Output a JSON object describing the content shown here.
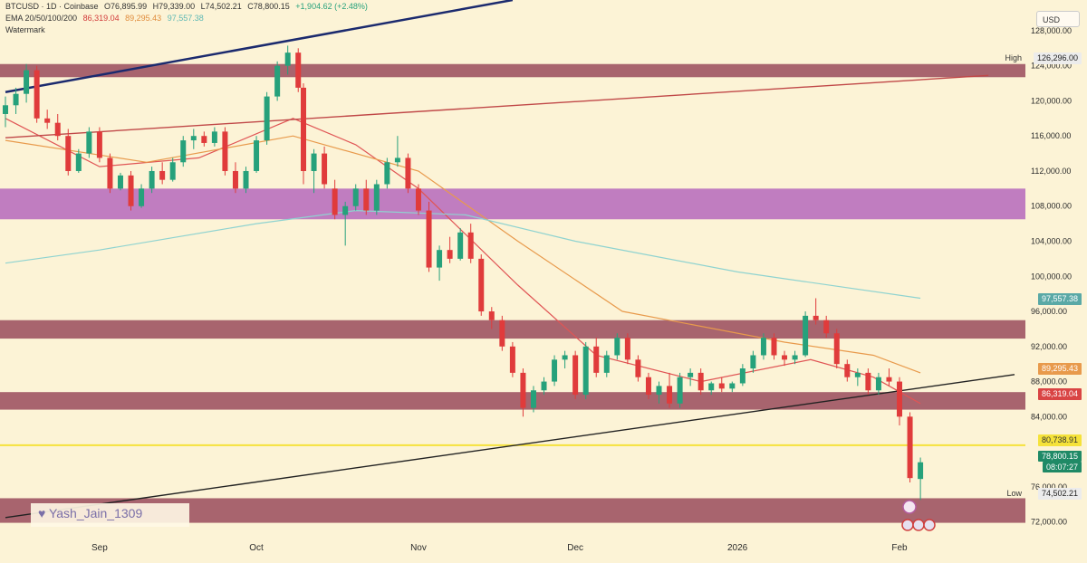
{
  "header": {
    "symbol": "BTCUSD · 1D · Coinbase",
    "open": "O76,895.99",
    "high": "H79,339.00",
    "low": "L74,502.21",
    "close": "C78,800.15",
    "change": "+1,904.62 (+2.48%)",
    "ema_label": "EMA 20/50/100/200",
    "ema20": "86,319.04",
    "ema50": "89,295.43",
    "ema100": "97,557.38",
    "watermark_label": "Watermark"
  },
  "currency": "USD",
  "watermark": "Yash_Jain_1309",
  "price_tags": {
    "high_label": "High",
    "high_value": "126,296.00",
    "low_label": "Low",
    "low_value": "74,502.21",
    "ema100_tag": "97,557.38",
    "ema50_tag": "89,295.43",
    "ema20_tag": "86,319.04",
    "level_tag": "80,738.91",
    "last_price": "78,800.15",
    "countdown": "08:07:27"
  },
  "colors": {
    "background": "#fcf3d6",
    "zone_red": "#a8646e",
    "zone_purple": "#c07dc0",
    "up_candle": "#26a17b",
    "down_candle": "#e03b3b",
    "ema20": "#e05555",
    "ema50": "#e89a4c",
    "ema100": "#8fd3d0",
    "yellow_line": "#f5e23a"
  },
  "chart_data": {
    "type": "candlestick",
    "symbol": "BTCUSD",
    "timeframe": "1D",
    "y_axis_ticks": [
      "128,000.00",
      "124,000.00",
      "120,000.00",
      "116,000.00",
      "112,000.00",
      "108,000.00",
      "104,000.00",
      "100,000.00",
      "96,000.00",
      "92,000.00",
      "88,000.00",
      "84,000.00",
      "76,000.00",
      "72,000.00"
    ],
    "y_tick_values": [
      128000,
      124000,
      120000,
      116000,
      112000,
      108000,
      104000,
      100000,
      96000,
      92000,
      88000,
      84000,
      76000,
      72000
    ],
    "ylim": [
      70000,
      131500
    ],
    "x_axis_labels": [
      "Sep",
      "Oct",
      "Nov",
      "Dec",
      "2026",
      "Feb"
    ],
    "x_label_dates": [
      "2025-09-01",
      "2025-10-01",
      "2025-11-01",
      "2025-12-01",
      "2026-01-01",
      "2026-02-01"
    ],
    "zones": [
      {
        "color": "red",
        "low": 122700,
        "high": 124200
      },
      {
        "color": "purple",
        "low": 106500,
        "high": 110000
      },
      {
        "color": "red",
        "low": 92900,
        "high": 95000
      },
      {
        "color": "red",
        "low": 84800,
        "high": 86800
      },
      {
        "color": "red",
        "low": 71900,
        "high": 74700
      }
    ],
    "horizontal_lines": [
      {
        "name": "level",
        "value": 80738.91,
        "color": "yellow"
      }
    ],
    "trendlines": [
      {
        "color": "navy",
        "from": [
          "2025-08-14",
          121000
        ],
        "to": [
          "2025-11-19",
          131500
        ]
      },
      {
        "color": "red",
        "from": [
          "2025-08-14",
          115800
        ],
        "to": [
          "2026-02-18",
          122900
        ]
      },
      {
        "color": "black",
        "from": [
          "2025-08-14",
          72500
        ],
        "to": [
          "2026-02-23",
          88800
        ]
      }
    ],
    "series": [
      {
        "name": "EMA 20",
        "color": "red",
        "points": [
          [
            "2025-08-14",
            118000
          ],
          [
            "2025-09-01",
            112500
          ],
          [
            "2025-09-20",
            113500
          ],
          [
            "2025-10-08",
            118000
          ],
          [
            "2025-10-20",
            115000
          ],
          [
            "2025-11-01",
            110000
          ],
          [
            "2025-11-20",
            99000
          ],
          [
            "2025-12-05",
            91000
          ],
          [
            "2025-12-25",
            88000
          ],
          [
            "2026-01-15",
            90500
          ],
          [
            "2026-01-27",
            88500
          ],
          [
            "2026-02-05",
            85500
          ]
        ]
      },
      {
        "name": "EMA 50",
        "color": "orange",
        "points": [
          [
            "2025-08-14",
            115500
          ],
          [
            "2025-09-10",
            113000
          ],
          [
            "2025-10-08",
            116000
          ],
          [
            "2025-11-01",
            112000
          ],
          [
            "2025-11-20",
            104000
          ],
          [
            "2025-12-10",
            96000
          ],
          [
            "2026-01-10",
            92500
          ],
          [
            "2026-01-27",
            91000
          ],
          [
            "2026-02-05",
            89000
          ]
        ]
      },
      {
        "name": "EMA 100",
        "color": "teal",
        "points": [
          [
            "2025-08-14",
            101500
          ],
          [
            "2025-09-01",
            103000
          ],
          [
            "2025-10-01",
            106000
          ],
          [
            "2025-10-20",
            107500
          ],
          [
            "2025-11-10",
            107000
          ],
          [
            "2025-12-01",
            104000
          ],
          [
            "2026-01-01",
            100500
          ],
          [
            "2026-02-05",
            97500
          ]
        ]
      }
    ],
    "candles": [
      [
        "2025-08-14",
        118500,
        120500,
        117000,
        119500
      ],
      [
        "2025-08-16",
        119500,
        121500,
        118500,
        120800
      ],
      [
        "2025-08-18",
        120800,
        124200,
        119800,
        123500
      ],
      [
        "2025-08-20",
        123500,
        124000,
        117500,
        118000
      ],
      [
        "2025-08-22",
        118000,
        119000,
        116800,
        117500
      ],
      [
        "2025-08-24",
        117500,
        118500,
        115500,
        116000
      ],
      [
        "2025-08-26",
        116000,
        116800,
        111500,
        112000
      ],
      [
        "2025-08-28",
        112000,
        114500,
        111800,
        114000
      ],
      [
        "2025-08-30",
        114000,
        117000,
        113500,
        116500
      ],
      [
        "2025-09-01",
        116500,
        117000,
        113000,
        113500
      ],
      [
        "2025-09-03",
        113500,
        114000,
        109500,
        110000
      ],
      [
        "2025-09-05",
        110000,
        111800,
        109800,
        111500
      ],
      [
        "2025-09-07",
        111500,
        112000,
        107500,
        108000
      ],
      [
        "2025-09-09",
        108000,
        110500,
        107800,
        110000
      ],
      [
        "2025-09-11",
        110000,
        112500,
        109500,
        112000
      ],
      [
        "2025-09-13",
        112000,
        113000,
        110500,
        111000
      ],
      [
        "2025-09-15",
        111000,
        113500,
        110800,
        113000
      ],
      [
        "2025-09-17",
        113000,
        116000,
        112500,
        115500
      ],
      [
        "2025-09-19",
        115500,
        116800,
        114500,
        116000
      ],
      [
        "2025-09-21",
        116000,
        116500,
        114800,
        115200
      ],
      [
        "2025-09-23",
        115200,
        117000,
        114800,
        116500
      ],
      [
        "2025-09-25",
        116500,
        117000,
        111500,
        112000
      ],
      [
        "2025-09-27",
        112000,
        113000,
        109500,
        110000
      ],
      [
        "2025-09-29",
        110000,
        112500,
        109500,
        112000
      ],
      [
        "2025-10-01",
        112000,
        116000,
        111800,
        115500
      ],
      [
        "2025-10-03",
        115500,
        121000,
        115000,
        120500
      ],
      [
        "2025-10-05",
        120500,
        124500,
        120000,
        124000
      ],
      [
        "2025-10-07",
        124000,
        126296,
        123000,
        125500
      ],
      [
        "2025-10-09",
        125500,
        126000,
        121000,
        121500
      ],
      [
        "2025-10-10",
        121500,
        122000,
        110500,
        112000
      ],
      [
        "2025-10-12",
        112000,
        114500,
        109500,
        114000
      ],
      [
        "2025-10-14",
        114000,
        114800,
        110000,
        110500
      ],
      [
        "2025-10-16",
        110000,
        111000,
        106500,
        107000
      ],
      [
        "2025-10-18",
        107000,
        108500,
        103500,
        108000
      ],
      [
        "2025-10-20",
        108000,
        110500,
        107500,
        110000
      ],
      [
        "2025-10-22",
        110000,
        111000,
        107000,
        107500
      ],
      [
        "2025-10-24",
        107500,
        111000,
        107000,
        110500
      ],
      [
        "2025-10-26",
        110500,
        113500,
        110000,
        113000
      ],
      [
        "2025-10-28",
        113000,
        116000,
        112500,
        113500
      ],
      [
        "2025-10-30",
        113500,
        114000,
        109500,
        110000
      ],
      [
        "2025-11-01",
        110000,
        110500,
        107000,
        107500
      ],
      [
        "2025-11-03",
        107500,
        108500,
        100500,
        101000
      ],
      [
        "2025-11-05",
        101000,
        103500,
        99500,
        103000
      ],
      [
        "2025-11-07",
        103000,
        104500,
        101500,
        102000
      ],
      [
        "2025-11-09",
        102000,
        105500,
        101800,
        105000
      ],
      [
        "2025-11-11",
        105000,
        106000,
        101500,
        102000
      ],
      [
        "2025-11-13",
        102000,
        102500,
        95500,
        96000
      ],
      [
        "2025-11-15",
        96000,
        96500,
        94000,
        95000
      ],
      [
        "2025-11-17",
        95000,
        95500,
        91500,
        92000
      ],
      [
        "2025-11-19",
        92000,
        92500,
        88500,
        89000
      ],
      [
        "2025-11-21",
        89000,
        89500,
        84000,
        85000
      ],
      [
        "2025-11-23",
        85000,
        87500,
        84500,
        87000
      ],
      [
        "2025-11-25",
        87000,
        88500,
        86500,
        88000
      ],
      [
        "2025-11-27",
        88000,
        91000,
        87500,
        90500
      ],
      [
        "2025-11-29",
        90500,
        91500,
        89500,
        91000
      ],
      [
        "2025-12-01",
        91000,
        91500,
        86000,
        86500
      ],
      [
        "2025-12-03",
        86500,
        92500,
        86000,
        92000
      ],
      [
        "2025-12-05",
        92000,
        93000,
        88500,
        89000
      ],
      [
        "2025-12-07",
        89000,
        91500,
        88500,
        91000
      ],
      [
        "2025-12-09",
        91000,
        93500,
        90500,
        93000
      ],
      [
        "2025-12-11",
        93000,
        93500,
        90000,
        90500
      ],
      [
        "2025-12-13",
        90500,
        91000,
        88000,
        88500
      ],
      [
        "2025-12-15",
        88500,
        89000,
        86000,
        86500
      ],
      [
        "2025-12-17",
        86500,
        88000,
        85500,
        87500
      ],
      [
        "2025-12-19",
        87500,
        89000,
        85000,
        85500
      ],
      [
        "2025-12-21",
        85500,
        89000,
        85000,
        88500
      ],
      [
        "2025-12-23",
        88500,
        89500,
        87500,
        89000
      ],
      [
        "2025-12-25",
        89000,
        89500,
        86500,
        87000
      ],
      [
        "2025-12-27",
        87000,
        88000,
        86500,
        87800
      ],
      [
        "2025-12-29",
        87800,
        88500,
        86800,
        87200
      ],
      [
        "2025-12-31",
        87200,
        88000,
        86800,
        87800
      ],
      [
        "2026-01-02",
        87800,
        90000,
        87500,
        89500
      ],
      [
        "2026-01-04",
        89500,
        91500,
        89000,
        91000
      ],
      [
        "2026-01-06",
        91000,
        93500,
        90500,
        93000
      ],
      [
        "2026-01-08",
        93000,
        93500,
        90500,
        91000
      ],
      [
        "2026-01-10",
        91000,
        91500,
        89800,
        90500
      ],
      [
        "2026-01-12",
        90500,
        91500,
        90000,
        91000
      ],
      [
        "2026-01-14",
        91000,
        96000,
        90800,
        95500
      ],
      [
        "2026-01-16",
        95500,
        97500,
        94500,
        95000
      ],
      [
        "2026-01-18",
        95000,
        95500,
        93000,
        93500
      ],
      [
        "2026-01-20",
        93500,
        94000,
        89500,
        90000
      ],
      [
        "2026-01-22",
        90000,
        90500,
        88000,
        88500
      ],
      [
        "2026-01-24",
        88500,
        89500,
        87500,
        89000
      ],
      [
        "2026-01-26",
        89000,
        89500,
        86500,
        87000
      ],
      [
        "2026-01-28",
        87000,
        89000,
        86500,
        88500
      ],
      [
        "2026-01-30",
        88500,
        89500,
        87500,
        88000
      ],
      [
        "2026-02-01",
        88000,
        88500,
        83000,
        84000
      ],
      [
        "2026-02-03",
        84000,
        84500,
        76500,
        77000
      ],
      [
        "2026-02-05",
        76895.99,
        79339,
        74502.21,
        78800.15
      ]
    ]
  }
}
